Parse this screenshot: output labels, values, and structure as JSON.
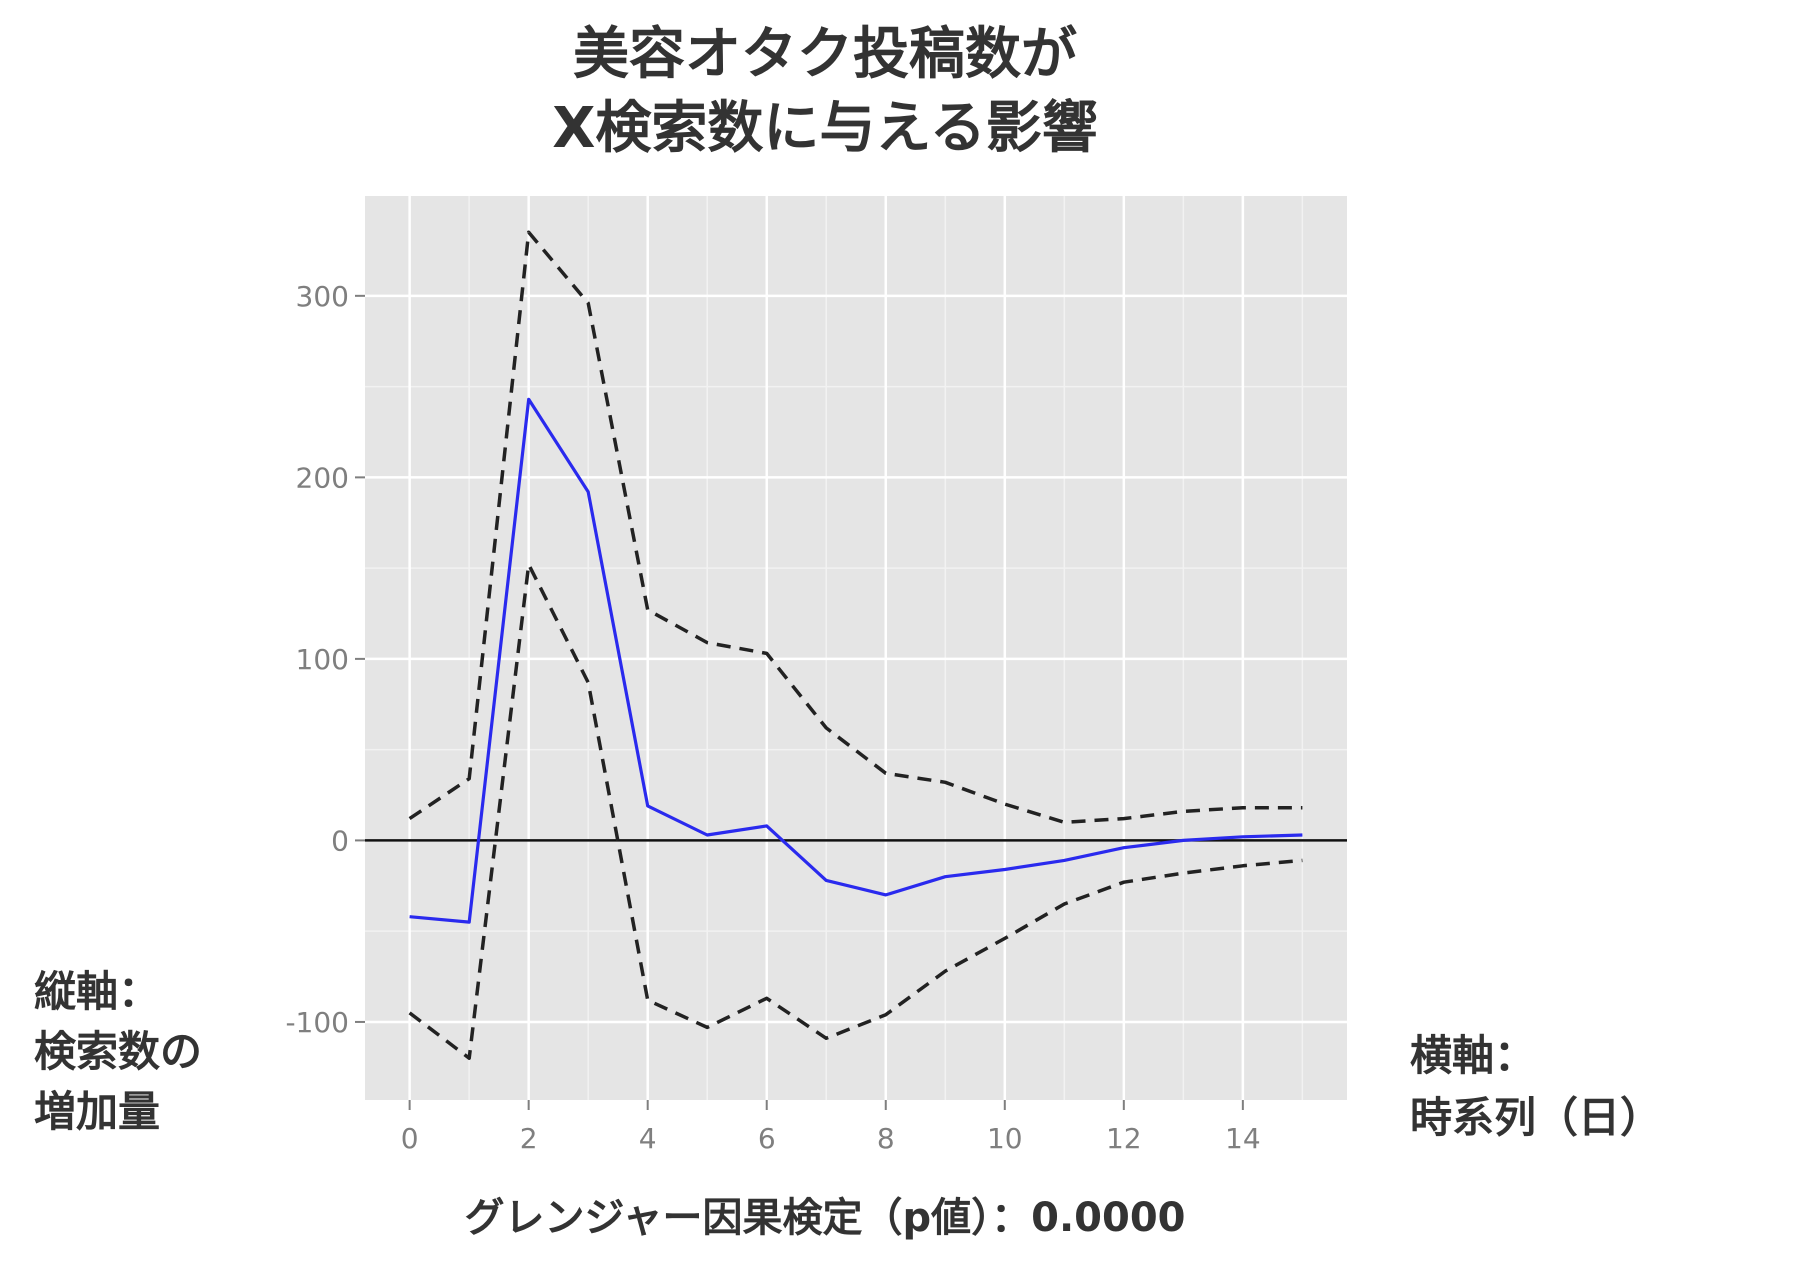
{
  "title": {
    "line1": "美容オタク投稿数が",
    "line2": "X検索数に与える影響"
  },
  "y_label": {
    "line1": "縦軸：",
    "line2": "検索数の",
    "line3": "増加量"
  },
  "x_label": {
    "line1": "横軸：",
    "line2": "時系列（日）"
  },
  "footer": "グレンジャー因果検定（p値）：0.0000",
  "chart_data": {
    "type": "line",
    "x": [
      0,
      1,
      2,
      3,
      4,
      5,
      6,
      7,
      8,
      9,
      10,
      11,
      12,
      13,
      14,
      15
    ],
    "series": [
      {
        "color": "#2a2aee",
        "style": "solid",
        "values": [
          -42,
          -45,
          243,
          192,
          19,
          3,
          8,
          -22,
          -30,
          -20,
          -16,
          -11,
          -4,
          0,
          2,
          3
        ]
      },
      {
        "color": "#222222",
        "style": "dashed",
        "values": [
          12,
          34,
          335,
          296,
          127,
          109,
          103,
          62,
          37,
          32,
          20,
          10,
          12,
          16,
          18,
          18
        ]
      },
      {
        "color": "#222222",
        "style": "dashed",
        "values": [
          -95,
          -120,
          152,
          87,
          -88,
          -103,
          -87,
          -109,
          -96,
          -72,
          -54,
          -35,
          -23,
          -18,
          -14,
          -11
        ]
      }
    ],
    "zero_line": 0,
    "xlim": [
      -0.75,
      15.75
    ],
    "ylim": [
      -143,
      355
    ],
    "x_ticks": [
      "0",
      "2",
      "4",
      "6",
      "8",
      "10",
      "12",
      "14"
    ],
    "y_ticks": [
      "-100",
      "0",
      "100",
      "200",
      "300"
    ],
    "grid": true,
    "legend": "none"
  }
}
